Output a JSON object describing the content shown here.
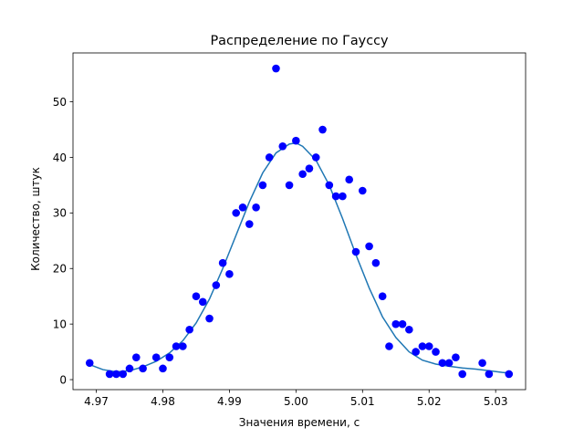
{
  "chart_data": {
    "type": "scatter",
    "title": "Распределение по Гауссу",
    "xlabel": "Значения времени, с",
    "ylabel": "Количество, штук",
    "xlim": [
      4.9665,
      5.0345
    ],
    "ylim": [
      -1.8,
      58.8
    ],
    "xticks": [
      4.97,
      4.98,
      4.99,
      5.0,
      5.01,
      5.02,
      5.03
    ],
    "xtick_labels": [
      "4.97",
      "4.98",
      "4.99",
      "5.00",
      "5.01",
      "5.02",
      "5.03"
    ],
    "yticks": [
      0,
      10,
      20,
      30,
      40,
      50
    ],
    "ytick_labels": [
      "0",
      "10",
      "20",
      "30",
      "40",
      "50"
    ],
    "grid": false,
    "series": [
      {
        "kind": "points",
        "color": "#0000ff",
        "x": [
          4.969,
          4.972,
          4.973,
          4.974,
          4.975,
          4.976,
          4.977,
          4.979,
          4.98,
          4.981,
          4.982,
          4.983,
          4.984,
          4.985,
          4.986,
          4.987,
          4.988,
          4.989,
          4.99,
          4.991,
          4.992,
          4.993,
          4.994,
          4.995,
          4.996,
          4.997,
          4.998,
          4.999,
          5.0,
          5.001,
          5.002,
          5.003,
          5.004,
          5.005,
          5.006,
          5.007,
          5.008,
          5.009,
          5.01,
          5.011,
          5.012,
          5.013,
          5.014,
          5.015,
          5.016,
          5.017,
          5.018,
          5.019,
          5.02,
          5.021,
          5.022,
          5.023,
          5.024,
          5.025,
          5.028,
          5.029,
          5.032
        ],
        "y": [
          3,
          1,
          1,
          1,
          2,
          4,
          2,
          4,
          2,
          4,
          6,
          6,
          9,
          15,
          14,
          11,
          17,
          21,
          19,
          30,
          31,
          28,
          31,
          35,
          40,
          56,
          42,
          35,
          43,
          37,
          38,
          40,
          45,
          35,
          33,
          33,
          36,
          23,
          34,
          24,
          21,
          15,
          6,
          10,
          10,
          9,
          5,
          6,
          6,
          5,
          3,
          3,
          4,
          1,
          3,
          1,
          1
        ]
      },
      {
        "kind": "curve",
        "color": "#1f77b4",
        "x": [
          4.969,
          4.971,
          4.973,
          4.975,
          4.977,
          4.979,
          4.981,
          4.983,
          4.985,
          4.987,
          4.989,
          4.991,
          4.993,
          4.995,
          4.997,
          4.999,
          5.0,
          5.001,
          5.003,
          5.005,
          5.007,
          5.009,
          5.011,
          5.013,
          5.015,
          5.017,
          5.019,
          5.021,
          5.023,
          5.025,
          5.027,
          5.029,
          5.031,
          5.032
        ],
        "y": [
          2.7,
          1.8,
          1.4,
          1.6,
          2.3,
          3.3,
          4.8,
          7.0,
          10.2,
          14.5,
          20.0,
          26.0,
          32.0,
          37.2,
          40.8,
          42.4,
          42.6,
          42.0,
          39.5,
          35.0,
          29.0,
          22.5,
          16.5,
          11.3,
          7.6,
          5.0,
          3.5,
          2.8,
          2.4,
          2.1,
          1.9,
          1.6,
          1.3,
          1.2
        ]
      }
    ]
  }
}
